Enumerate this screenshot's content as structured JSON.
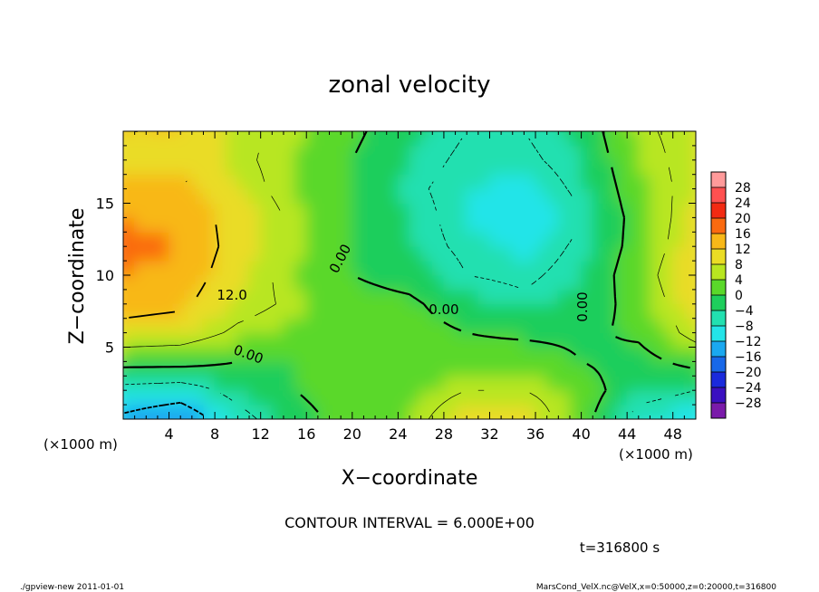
{
  "chart_data": {
    "type": "heatmap",
    "title": "zonal velocity",
    "xlabel": "X−coordinate",
    "ylabel": "Z−coordinate",
    "x_unit_note": "(×1000 m)",
    "z_unit_note": "(×1000 m)",
    "xlim": [
      0,
      50
    ],
    "ylim": [
      0,
      20
    ],
    "x_ticks": [
      "4",
      "8",
      "12",
      "16",
      "20",
      "24",
      "28",
      "32",
      "36",
      "40",
      "44",
      "48"
    ],
    "x_tick_values": [
      4,
      8,
      12,
      16,
      20,
      24,
      28,
      32,
      36,
      40,
      44,
      48
    ],
    "y_ticks": [
      "5",
      "10",
      "15"
    ],
    "y_tick_values": [
      5,
      10,
      15
    ],
    "colorbar": {
      "labels": [
        "28",
        "24",
        "20",
        "16",
        "12",
        "8",
        "4",
        "0",
        "−4",
        "−8",
        "−12",
        "−16",
        "−20",
        "−24",
        "−28"
      ],
      "values": [
        28,
        24,
        20,
        16,
        12,
        8,
        4,
        0,
        -4,
        -8,
        -12,
        -16,
        -20,
        -24,
        -28
      ],
      "colors": [
        "#ff9a9a",
        "#ff5050",
        "#f22a12",
        "#fa6a10",
        "#f8b818",
        "#eadc25",
        "#b8e620",
        "#5ad82a",
        "#1ece5c",
        "#22e0b0",
        "#24e4e8",
        "#1aa8f0",
        "#1868e8",
        "#1a2adc",
        "#3a10c0",
        "#7a1aaa"
      ]
    },
    "contour_labels": [
      "12.0",
      "0.00",
      "0.00",
      "0.00",
      "0.00"
    ],
    "contour_interval_text": "CONTOUR INTERVAL = 6.000E+00",
    "time_text": "t=316800 s",
    "velocity_samples": {
      "x": [
        0,
        5,
        10,
        15,
        20,
        25,
        30,
        35,
        40,
        45,
        50
      ],
      "z": [
        0,
        2,
        4,
        6,
        8,
        10,
        12,
        14,
        16,
        18,
        20
      ],
      "u": [
        [
          -13,
          -16,
          -8,
          -2,
          2,
          4,
          10,
          10,
          2,
          -8,
          -10
        ],
        [
          -8,
          -9,
          -4,
          0,
          3,
          3,
          6,
          6,
          3,
          -4,
          -6
        ],
        [
          2,
          2,
          0,
          0,
          2,
          1,
          2,
          3,
          0,
          -2,
          2
        ],
        [
          10,
          9,
          5,
          3,
          3,
          2,
          0,
          -1,
          -1,
          1,
          8
        ],
        [
          14,
          13,
          8,
          5,
          2,
          1,
          -3,
          -5,
          -3,
          2,
          10
        ],
        [
          16,
          15,
          9,
          4,
          0,
          -2,
          -6,
          -7,
          -4,
          3,
          12
        ],
        [
          17,
          16,
          10,
          5,
          0,
          -4,
          -7,
          -9,
          -5,
          2,
          10
        ],
        [
          16,
          15,
          10,
          5,
          0,
          -4,
          -8,
          -12,
          -6,
          2,
          9
        ],
        [
          13,
          13,
          8,
          4,
          0,
          -5,
          -8,
          -9,
          -5,
          3,
          8
        ],
        [
          11,
          11,
          7,
          4,
          0,
          -4,
          -7,
          -7,
          -4,
          4,
          8
        ],
        [
          12,
          12,
          7,
          5,
          1,
          -3,
          -6,
          -6,
          -3,
          5,
          8
        ]
      ]
    }
  },
  "footer": {
    "program": "./gpview-new  2011-01-01",
    "source": "MarsCond_VelX.nc@VelX,x=0:50000,z=0:20000,t=316800"
  }
}
